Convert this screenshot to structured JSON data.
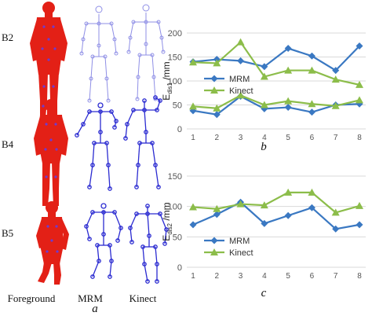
{
  "panel_a": {
    "rows": [
      "B2",
      "B4",
      "B5"
    ],
    "columns": [
      "Foreground",
      "MRM",
      "Kinect"
    ],
    "caption": "a"
  },
  "chart_data": [
    {
      "type": "line",
      "caption": "b",
      "x": [
        1,
        2,
        3,
        4,
        5,
        6,
        7,
        8
      ],
      "ylabel_main": "E",
      "ylabel_sub": "dis1",
      "ylabel_unit": " /mm",
      "ylim": [
        0,
        200
      ],
      "yticks": [
        0,
        50,
        100,
        150,
        200
      ],
      "grid": true,
      "legend_position": "center",
      "series": [
        {
          "name": "MRM",
          "color": "#3a78c2",
          "marker": "diamond",
          "values": [
            140,
            145,
            142,
            130,
            168,
            152,
            122,
            173
          ]
        },
        {
          "name": "Kinect",
          "color": "#8cbd4a",
          "marker": "triangle",
          "values": [
            139,
            137,
            181,
            109,
            122,
            122,
            103,
            92
          ]
        },
        {
          "color": "#3a78c2",
          "marker": "diamond",
          "values": [
            38,
            30,
            68,
            42,
            45,
            35,
            50,
            52
          ]
        },
        {
          "color": "#8cbd4a",
          "marker": "triangle",
          "values": [
            47,
            43,
            70,
            50,
            58,
            52,
            48,
            60
          ]
        }
      ]
    },
    {
      "type": "line",
      "caption": "c",
      "x": [
        1,
        2,
        3,
        4,
        5,
        6,
        7,
        8
      ],
      "ylabel_main": "E",
      "ylabel_sub": "dis2",
      "ylabel_unit": " /mm",
      "ylim": [
        0,
        150
      ],
      "yticks": [
        0,
        50,
        100,
        150
      ],
      "grid": true,
      "legend_position": "bottom-left",
      "series": [
        {
          "name": "MRM",
          "color": "#3a78c2",
          "marker": "diamond",
          "values": [
            70,
            87,
            107,
            72,
            85,
            98,
            63,
            70
          ]
        },
        {
          "name": "Kinect",
          "color": "#8cbd4a",
          "marker": "triangle",
          "values": [
            99,
            96,
            104,
            102,
            123,
            123,
            90,
            101
          ]
        }
      ]
    }
  ]
}
